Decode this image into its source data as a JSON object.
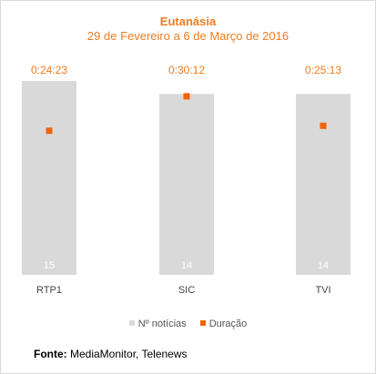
{
  "chart_data": {
    "type": "bar",
    "title": "Eutanásia",
    "subtitle": "29 de Fevereiro a 6 de Março de 2016",
    "categories": [
      "RTP1",
      "SIC",
      "TVI"
    ],
    "series": [
      {
        "name": "Nº notícias",
        "type": "bar",
        "color": "#d9d9d9",
        "values": [
          15,
          14,
          14
        ],
        "labels": [
          "15",
          "14",
          "14"
        ]
      },
      {
        "name": "Duração",
        "type": "scatter",
        "color": "#f0640a",
        "values_seconds": [
          1463,
          1812,
          1513
        ],
        "labels": [
          "0:24:23",
          "0:30:12",
          "0:25:13"
        ]
      }
    ],
    "bar_ylim": [
      0,
      15
    ],
    "duration_ylim_seconds": [
      0,
      1968
    ],
    "grid": false,
    "legend_position": "bottom"
  },
  "source": {
    "label": "Fonte:",
    "text": " MediaMonitor, Telenews"
  }
}
